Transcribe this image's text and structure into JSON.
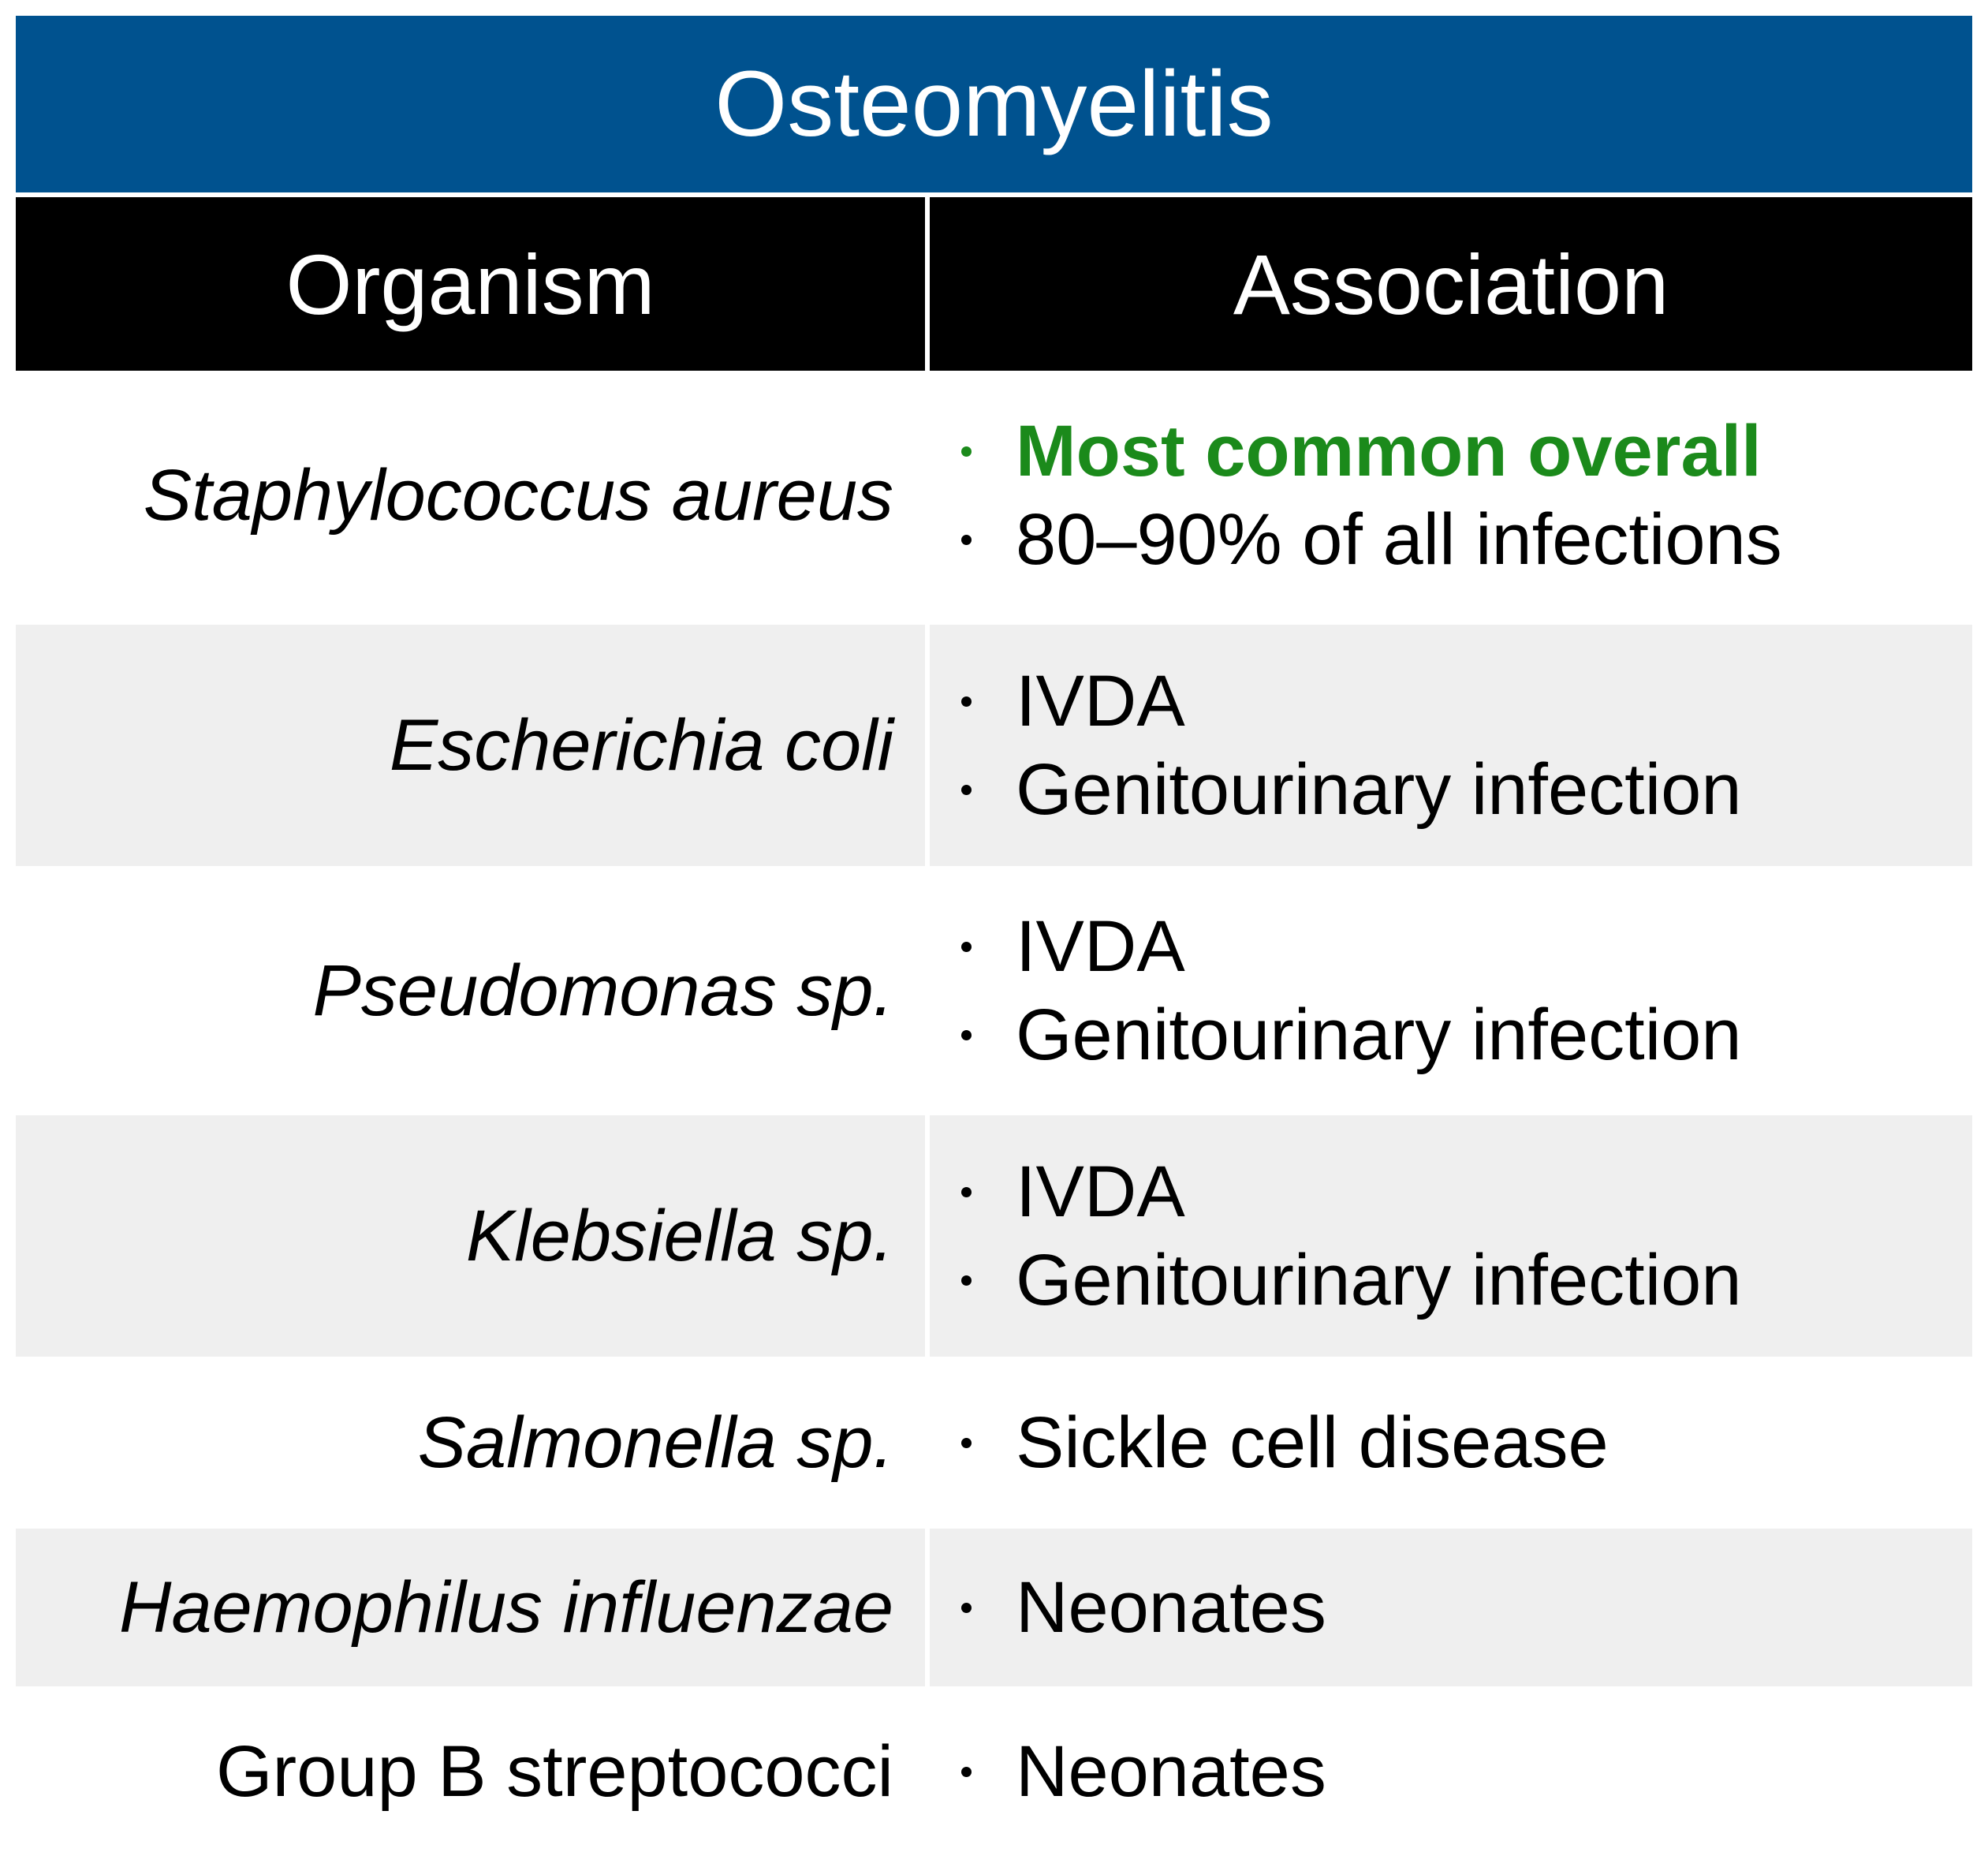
{
  "title": "Osteomyelitis",
  "headers": {
    "organism": "Organism",
    "association": "Association"
  },
  "colors": {
    "title_bg": "#00528f",
    "header_bg": "#000000",
    "shaded_row": "#efefef",
    "highlight_text": "#1b8a1b"
  },
  "rows": [
    {
      "organism": "Staphylococcus aureus",
      "italic": true,
      "associations": [
        {
          "text": "Most common overall",
          "highlight": true
        },
        {
          "text": "80–90% of all infections",
          "highlight": false
        }
      ]
    },
    {
      "organism": "Escherichia coli",
      "italic": true,
      "associations": [
        {
          "text": "IVDA",
          "highlight": false
        },
        {
          "text": "Genitourinary infection",
          "highlight": false
        }
      ]
    },
    {
      "organism": "Pseudomonas sp.",
      "italic": true,
      "associations": [
        {
          "text": "IVDA",
          "highlight": false
        },
        {
          "text": "Genitourinary infection",
          "highlight": false
        }
      ]
    },
    {
      "organism": "Klebsiella sp.",
      "italic": true,
      "associations": [
        {
          "text": "IVDA",
          "highlight": false
        },
        {
          "text": "Genitourinary infection",
          "highlight": false
        }
      ]
    },
    {
      "organism": "Salmonella sp.",
      "italic": true,
      "associations": [
        {
          "text": "Sickle cell disease",
          "highlight": false
        }
      ]
    },
    {
      "organism": "Haemophilus influenzae",
      "italic": true,
      "associations": [
        {
          "text": "Neonates",
          "highlight": false
        }
      ]
    },
    {
      "organism": "Group B streptococci",
      "italic": false,
      "associations": [
        {
          "text": "Neonates",
          "highlight": false
        }
      ]
    }
  ]
}
